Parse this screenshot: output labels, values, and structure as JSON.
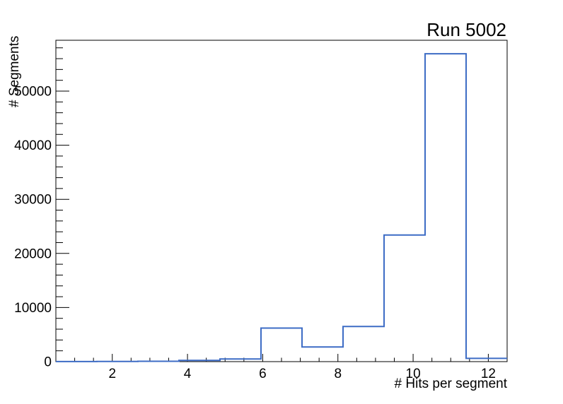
{
  "page": {
    "background": "#ffffff"
  },
  "chart_data": {
    "type": "histogram",
    "title": "Run 5002",
    "xlabel": "# Hits per segment",
    "ylabel": "# Segments",
    "xlim": [
      0.5,
      12.5
    ],
    "ylim": [
      0,
      59400
    ],
    "bin_edges": [
      0.5,
      1.591,
      2.682,
      3.773,
      4.864,
      5.955,
      7.045,
      8.136,
      9.227,
      10.318,
      11.409,
      12.5
    ],
    "bin_values": [
      15,
      25,
      60,
      230,
      500,
      6200,
      2700,
      6500,
      23400,
      56900,
      600
    ],
    "x_major_ticks": [
      2,
      4,
      6,
      8,
      10,
      12
    ],
    "x_minor_step": 0.5,
    "y_major_ticks": [
      0,
      10000,
      20000,
      30000,
      40000,
      50000
    ],
    "y_minor_step": 2000,
    "line_color": "#3d6cc5",
    "axis_color": "#000000",
    "grid": false,
    "legend": null
  }
}
